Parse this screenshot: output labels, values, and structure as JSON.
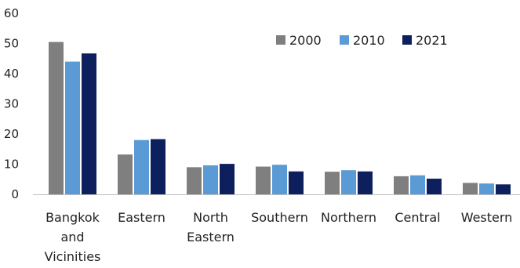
{
  "chart_data": {
    "type": "bar",
    "title": "",
    "xlabel": "",
    "ylabel": "",
    "ylim": [
      0,
      60
    ],
    "yticks": [
      0,
      10,
      20,
      30,
      40,
      50,
      60
    ],
    "grid": false,
    "legend_position": "top-right",
    "categories": [
      [
        "Bangkok",
        "and",
        "Vicinities"
      ],
      [
        "Eastern"
      ],
      [
        "North",
        "Eastern"
      ],
      [
        "Southern"
      ],
      [
        "Northern"
      ],
      [
        "Central"
      ],
      [
        "Western"
      ]
    ],
    "series": [
      {
        "name": "2000",
        "color": "#7f7f7f",
        "values": [
          50.5,
          13.2,
          9.0,
          9.2,
          7.5,
          6.0,
          3.8
        ]
      },
      {
        "name": "2010",
        "color": "#5b9bd5",
        "values": [
          44.0,
          18.0,
          9.6,
          9.8,
          8.0,
          6.3,
          3.6
        ]
      },
      {
        "name": "2021",
        "color": "#0d1f5c",
        "values": [
          46.7,
          18.3,
          10.1,
          7.6,
          7.6,
          5.2,
          3.3
        ]
      }
    ]
  }
}
